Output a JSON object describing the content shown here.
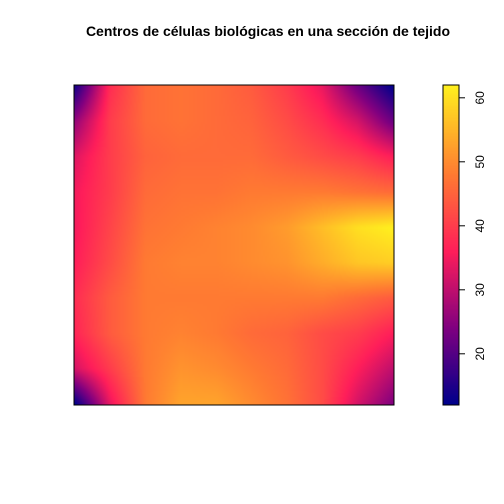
{
  "chart_data": {
    "type": "heatmap",
    "title": "Centros de células biológicas en una sección de tejido",
    "xlabel": "",
    "ylabel": "",
    "axes_visible": false,
    "colorbar": {
      "range": [
        12,
        62
      ],
      "ticks": [
        "20",
        "30",
        "40",
        "50",
        "60"
      ],
      "tick_values": [
        20,
        30,
        40,
        50,
        60
      ],
      "placement": "right",
      "orientation": "vertical"
    },
    "color_scale": [
      {
        "value": 12,
        "color": "#00008B"
      },
      {
        "value": 24,
        "color": "#800080"
      },
      {
        "value": 36,
        "color": "#FF1E5A"
      },
      {
        "value": 48,
        "color": "#FF7A32"
      },
      {
        "value": 62,
        "color": "#FFF01E"
      }
    ],
    "grid_note": "rows ordered top to bottom, columns left to right; values are estimated intensity",
    "grid": [
      [
        14,
        38,
        46,
        47,
        46,
        44,
        40,
        34,
        22,
        12
      ],
      [
        26,
        40,
        46,
        47,
        46,
        45,
        42,
        38,
        32,
        22
      ],
      [
        33,
        40,
        45,
        46,
        46,
        46,
        44,
        42,
        40,
        36
      ],
      [
        35,
        40,
        46,
        47,
        47,
        48,
        48,
        48,
        47,
        46
      ],
      [
        35,
        41,
        47,
        48,
        49,
        50,
        52,
        56,
        60,
        62
      ],
      [
        36,
        42,
        48,
        49,
        49,
        50,
        51,
        54,
        57,
        58
      ],
      [
        38,
        44,
        48,
        48,
        48,
        48,
        48,
        48,
        46,
        44
      ],
      [
        37,
        44,
        48,
        49,
        48,
        46,
        45,
        42,
        40,
        36
      ],
      [
        32,
        40,
        48,
        51,
        50,
        48,
        46,
        42,
        36,
        30
      ],
      [
        12,
        34,
        48,
        53,
        53,
        50,
        47,
        42,
        32,
        24
      ]
    ]
  }
}
